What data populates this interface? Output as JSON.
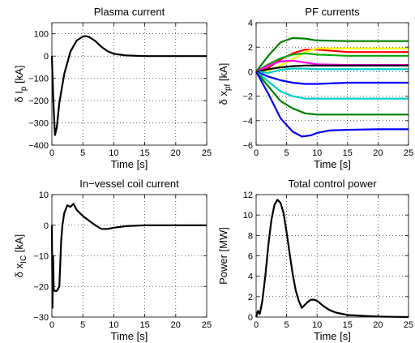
{
  "chart_data": [
    {
      "type": "line",
      "title": "Plasma current",
      "xlabel": "Time [s]",
      "ylabel": {
        "prefix": "δ I",
        "sub": "p",
        "suffix": " [kA]"
      },
      "xlim": [
        0,
        25
      ],
      "ylim": [
        -400,
        150
      ],
      "xticks": [
        0,
        5,
        10,
        15,
        20,
        25
      ],
      "yticks": [
        -400,
        -300,
        -200,
        -100,
        0,
        100
      ],
      "grid": true,
      "series": [
        {
          "color": "#000000",
          "x": [
            0,
            0.25,
            0.5,
            0.8,
            1.2,
            2,
            3,
            4,
            5,
            5.5,
            6,
            7,
            8,
            9,
            10,
            12,
            15,
            20,
            25
          ],
          "y": [
            0,
            -210,
            -355,
            -320,
            -210,
            -80,
            20,
            70,
            88,
            90,
            86,
            68,
            42,
            22,
            10,
            3,
            0,
            0,
            0
          ]
        }
      ]
    },
    {
      "type": "line",
      "title": "PF currents",
      "xlabel": "Time [s]",
      "ylabel": {
        "prefix": "δ x",
        "sub": "pf",
        "suffix": " [kA]"
      },
      "xlim": [
        0,
        25
      ],
      "ylim": [
        -6,
        4
      ],
      "xticks": [
        0,
        5,
        10,
        15,
        20,
        25
      ],
      "yticks": [
        -6,
        -4,
        -2,
        0,
        2,
        4
      ],
      "grid": true,
      "series": [
        {
          "color": "#008000",
          "x": [
            0,
            2,
            4,
            6,
            8,
            10,
            15,
            20,
            25
          ],
          "y": [
            0,
            1.3,
            2.4,
            2.75,
            2.7,
            2.55,
            2.5,
            2.5,
            2.5
          ]
        },
        {
          "color": "#ff0000",
          "x": [
            0,
            2,
            4,
            6,
            8,
            10,
            15,
            20,
            25
          ],
          "y": [
            0,
            0.3,
            1.0,
            1.5,
            1.8,
            1.8,
            1.6,
            1.6,
            1.6
          ]
        },
        {
          "color": "#ffff00",
          "x": [
            0,
            2,
            4,
            6,
            8,
            10,
            15,
            20,
            25
          ],
          "y": [
            0,
            0.1,
            0.5,
            1.0,
            1.6,
            1.9,
            1.9,
            1.9,
            1.9
          ]
        },
        {
          "color": "#00aa00",
          "x": [
            0,
            2,
            4,
            6,
            8,
            10,
            15,
            20,
            25
          ],
          "y": [
            0,
            0.6,
            1.1,
            1.4,
            1.5,
            1.4,
            1.3,
            1.3,
            1.3
          ]
        },
        {
          "color": "#ff00ff",
          "x": [
            0,
            2,
            4,
            6,
            8,
            10,
            15,
            20,
            25
          ],
          "y": [
            0,
            0.5,
            0.85,
            0.9,
            0.75,
            0.6,
            0.55,
            0.55,
            0.55
          ]
        },
        {
          "color": "#000000",
          "x": [
            0,
            2,
            4,
            6,
            8,
            10,
            15,
            20,
            25
          ],
          "y": [
            0,
            0.2,
            0.35,
            0.45,
            0.5,
            0.5,
            0.5,
            0.5,
            0.5
          ]
        },
        {
          "color": "#00cccc",
          "x": [
            0,
            2,
            4,
            6,
            8,
            10,
            15,
            20,
            25
          ],
          "y": [
            0,
            -0.1,
            0.15,
            0.25,
            0.25,
            0.2,
            0.2,
            0.2,
            0.2
          ]
        },
        {
          "color": "#0000ff",
          "x": [
            0,
            2,
            4,
            6,
            8,
            10,
            15,
            20,
            25
          ],
          "y": [
            0,
            -0.4,
            -0.7,
            -0.9,
            -1.0,
            -1.0,
            -0.9,
            -0.9,
            -0.9
          ]
        },
        {
          "color": "#00cccc",
          "x": [
            0,
            2,
            4,
            6,
            8,
            10,
            15,
            20,
            25
          ],
          "y": [
            0,
            -0.8,
            -1.6,
            -2.0,
            -2.2,
            -2.2,
            -2.2,
            -2.2,
            -2.2
          ]
        },
        {
          "color": "#008000",
          "x": [
            0,
            2,
            4,
            6,
            8,
            10,
            15,
            20,
            25
          ],
          "y": [
            0,
            -1.2,
            -2.4,
            -3.0,
            -3.4,
            -3.5,
            -3.5,
            -3.5,
            -3.5
          ]
        },
        {
          "color": "#0000ff",
          "x": [
            0,
            2,
            4,
            6,
            7.5,
            9,
            10,
            12,
            15,
            20,
            25
          ],
          "y": [
            0,
            -1.8,
            -3.8,
            -4.9,
            -5.3,
            -5.2,
            -5.0,
            -4.8,
            -4.75,
            -4.7,
            -4.7
          ]
        }
      ]
    },
    {
      "type": "line",
      "title": "In−vessel coil current",
      "xlabel": "Time [s]",
      "ylabel": {
        "prefix": "δ x",
        "sub": "IC",
        "suffix": " [kA]"
      },
      "xlim": [
        0,
        25
      ],
      "ylim": [
        -30,
        10
      ],
      "xticks": [
        0,
        5,
        10,
        15,
        20,
        25
      ],
      "yticks": [
        -30,
        -20,
        -10,
        0,
        10
      ],
      "grid": true,
      "series": [
        {
          "color": "#000000",
          "x": [
            0,
            0.1,
            0.2,
            0.3,
            0.5,
            0.8,
            1.2,
            1.5,
            1.7,
            2.0,
            2.5,
            3.0,
            3.5,
            4,
            5,
            6,
            7,
            8,
            9,
            10,
            12,
            15,
            20,
            25
          ],
          "y": [
            0,
            -27,
            -10,
            -21,
            -21.5,
            -21.5,
            -20,
            -5,
            0,
            4,
            6.5,
            6,
            7,
            5,
            3,
            1.5,
            0,
            -1.2,
            -1.2,
            -0.8,
            -0.3,
            0,
            0,
            0
          ]
        }
      ]
    },
    {
      "type": "line",
      "title": "Total control power",
      "xlabel": "Time [s]",
      "ylabel": {
        "prefix": "Power [MW]",
        "sub": "",
        "suffix": ""
      },
      "xlim": [
        0,
        25
      ],
      "ylim": [
        0,
        12
      ],
      "xticks": [
        0,
        5,
        10,
        15,
        20,
        25
      ],
      "yticks": [
        0,
        2,
        4,
        6,
        8,
        10,
        12
      ],
      "grid": true,
      "series": [
        {
          "color": "#000000",
          "x": [
            0,
            0.3,
            0.6,
            1,
            1.5,
            2,
            2.5,
            3,
            3.5,
            4,
            4.5,
            5,
            5.5,
            6,
            6.5,
            7,
            7.5,
            8,
            8.5,
            9,
            9.5,
            10,
            11,
            12,
            13,
            15,
            18,
            20,
            22,
            25
          ],
          "y": [
            0,
            0.6,
            0.3,
            1.5,
            4,
            7,
            9.5,
            11,
            11.5,
            11.2,
            10.2,
            8.3,
            6.2,
            4.2,
            2.6,
            1.6,
            0.9,
            1.2,
            1.5,
            1.7,
            1.7,
            1.6,
            1.1,
            0.7,
            0.45,
            0.2,
            0.1,
            0.05,
            0.02,
            0
          ]
        }
      ]
    }
  ]
}
